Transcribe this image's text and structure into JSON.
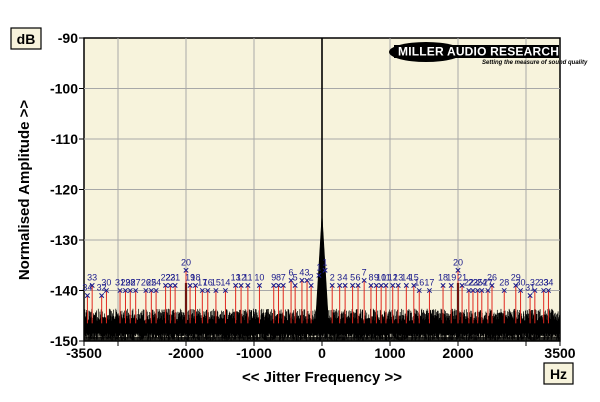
{
  "chart_data": {
    "type": "line",
    "title": "",
    "xlabel": "<< Jitter Frequency >>",
    "ylabel": "Normalised Amplitude >>",
    "x_unit": "Hz",
    "y_unit": "dB",
    "xlim": [
      -3500,
      3500
    ],
    "ylim": [
      -150,
      -90
    ],
    "x_ticks": [
      -3500,
      -2000,
      -1000,
      0,
      1000,
      2000,
      3500
    ],
    "x_tick_labels": [
      "-3500",
      "-2000",
      "-1000",
      "0",
      "1000",
      "2000",
      "3500"
    ],
    "y_ticks": [
      -90,
      -100,
      -110,
      -120,
      -130,
      -140,
      -150
    ],
    "y_tick_labels": [
      "-90",
      "-100",
      "-110",
      "-120",
      "-130",
      "-140",
      "-150"
    ],
    "grid": true,
    "noise_floor_db": -147,
    "central_peak": {
      "x": 0,
      "peak_db": -125,
      "spike_db": -90
    },
    "sidebands": [
      {
        "x": -2000,
        "y": -138.5
      },
      {
        "x": 2000,
        "y": -138.5
      }
    ],
    "harmonic_markers": {
      "left": [
        {
          "label": "1",
          "x": -45,
          "y": -137
        },
        {
          "label": "2",
          "x": -160,
          "y": -139
        },
        {
          "label": "3",
          "x": -220,
          "y": -138
        },
        {
          "label": "4",
          "x": -295,
          "y": -138
        },
        {
          "label": "5",
          "x": -395,
          "y": -139
        },
        {
          "label": "6",
          "x": -455,
          "y": -138
        },
        {
          "label": "7",
          "x": -570,
          "y": -139
        },
        {
          "label": "8",
          "x": -640,
          "y": -139
        },
        {
          "label": "9",
          "x": -710,
          "y": -139
        },
        {
          "label": "10",
          "x": -920,
          "y": -139
        },
        {
          "label": "11",
          "x": -1090,
          "y": -139
        },
        {
          "label": "12",
          "x": -1190,
          "y": -139
        },
        {
          "label": "13",
          "x": -1270,
          "y": -139
        },
        {
          "label": "14",
          "x": -1420,
          "y": -140
        },
        {
          "label": "15",
          "x": -1560,
          "y": -140
        },
        {
          "label": "16",
          "x": -1680,
          "y": -140
        },
        {
          "label": "17",
          "x": -1760,
          "y": -140
        },
        {
          "label": "18",
          "x": -1860,
          "y": -139
        },
        {
          "label": "19",
          "x": -1940,
          "y": -139
        },
        {
          "label": "20",
          "x": -2000,
          "y": -136
        },
        {
          "label": "21",
          "x": -2160,
          "y": -139
        },
        {
          "label": "22",
          "x": -2300,
          "y": -139
        },
        {
          "label": "23",
          "x": -2230,
          "y": -139
        },
        {
          "label": "24",
          "x": -2440,
          "y": -140
        },
        {
          "label": "25",
          "x": -2510,
          "y": -140
        },
        {
          "label": "26",
          "x": -2590,
          "y": -140
        },
        {
          "label": "27",
          "x": -2740,
          "y": -140
        },
        {
          "label": "28",
          "x": -2820,
          "y": -140
        },
        {
          "label": "29",
          "x": -2890,
          "y": -140
        },
        {
          "label": "30",
          "x": -3170,
          "y": -140
        },
        {
          "label": "31",
          "x": -2970,
          "y": -140
        },
        {
          "label": "32",
          "x": -3240,
          "y": -141
        },
        {
          "label": "33",
          "x": -3380,
          "y": -139
        },
        {
          "label": "34",
          "x": -3450,
          "y": -141
        }
      ],
      "right": [
        {
          "label": "1",
          "x": 45,
          "y": -136
        },
        {
          "label": "2",
          "x": 150,
          "y": -139
        },
        {
          "label": "3",
          "x": 260,
          "y": -139
        },
        {
          "label": "4",
          "x": 340,
          "y": -139
        },
        {
          "label": "5",
          "x": 450,
          "y": -139
        },
        {
          "label": "6",
          "x": 530,
          "y": -139
        },
        {
          "label": "7",
          "x": 620,
          "y": -138
        },
        {
          "label": "8",
          "x": 720,
          "y": -139
        },
        {
          "label": "9",
          "x": 800,
          "y": -139
        },
        {
          "label": "10",
          "x": 870,
          "y": -139
        },
        {
          "label": "11",
          "x": 940,
          "y": -139
        },
        {
          "label": "12",
          "x": 1040,
          "y": -139
        },
        {
          "label": "13",
          "x": 1120,
          "y": -139
        },
        {
          "label": "14",
          "x": 1240,
          "y": -139
        },
        {
          "label": "15",
          "x": 1350,
          "y": -139
        },
        {
          "label": "16",
          "x": 1430,
          "y": -140
        },
        {
          "label": "17",
          "x": 1580,
          "y": -140
        },
        {
          "label": "18",
          "x": 1780,
          "y": -139
        },
        {
          "label": "19",
          "x": 1900,
          "y": -139
        },
        {
          "label": "20",
          "x": 2000,
          "y": -136
        },
        {
          "label": "21",
          "x": 2060,
          "y": -139
        },
        {
          "label": "22",
          "x": 2160,
          "y": -140
        },
        {
          "label": "23",
          "x": 2220,
          "y": -140
        },
        {
          "label": "24",
          "x": 2350,
          "y": -140
        },
        {
          "label": "25",
          "x": 2290,
          "y": -140
        },
        {
          "label": "26",
          "x": 2500,
          "y": -139
        },
        {
          "label": "27",
          "x": 2440,
          "y": -140
        },
        {
          "label": "28",
          "x": 2680,
          "y": -140
        },
        {
          "label": "29",
          "x": 2850,
          "y": -139
        },
        {
          "label": "30",
          "x": 2920,
          "y": -140
        },
        {
          "label": "31",
          "x": 3060,
          "y": -141
        },
        {
          "label": "32",
          "x": 3130,
          "y": -140
        },
        {
          "label": "33",
          "x": 3260,
          "y": -140
        },
        {
          "label": "34",
          "x": 3330,
          "y": -140
        }
      ]
    },
    "colors": {
      "plot_background": "#f7f3dc",
      "grid": "#a8a8a8",
      "trace": "#000000",
      "harmonic_line": "#e0281e",
      "harmonic_marker": "#1a1a8c"
    }
  },
  "branding": {
    "logo_text": "MILLER AUDIO RESEARCH",
    "tagline": "Setting the measure of sound quality"
  },
  "units": {
    "y_box": "dB",
    "x_box": "Hz"
  }
}
